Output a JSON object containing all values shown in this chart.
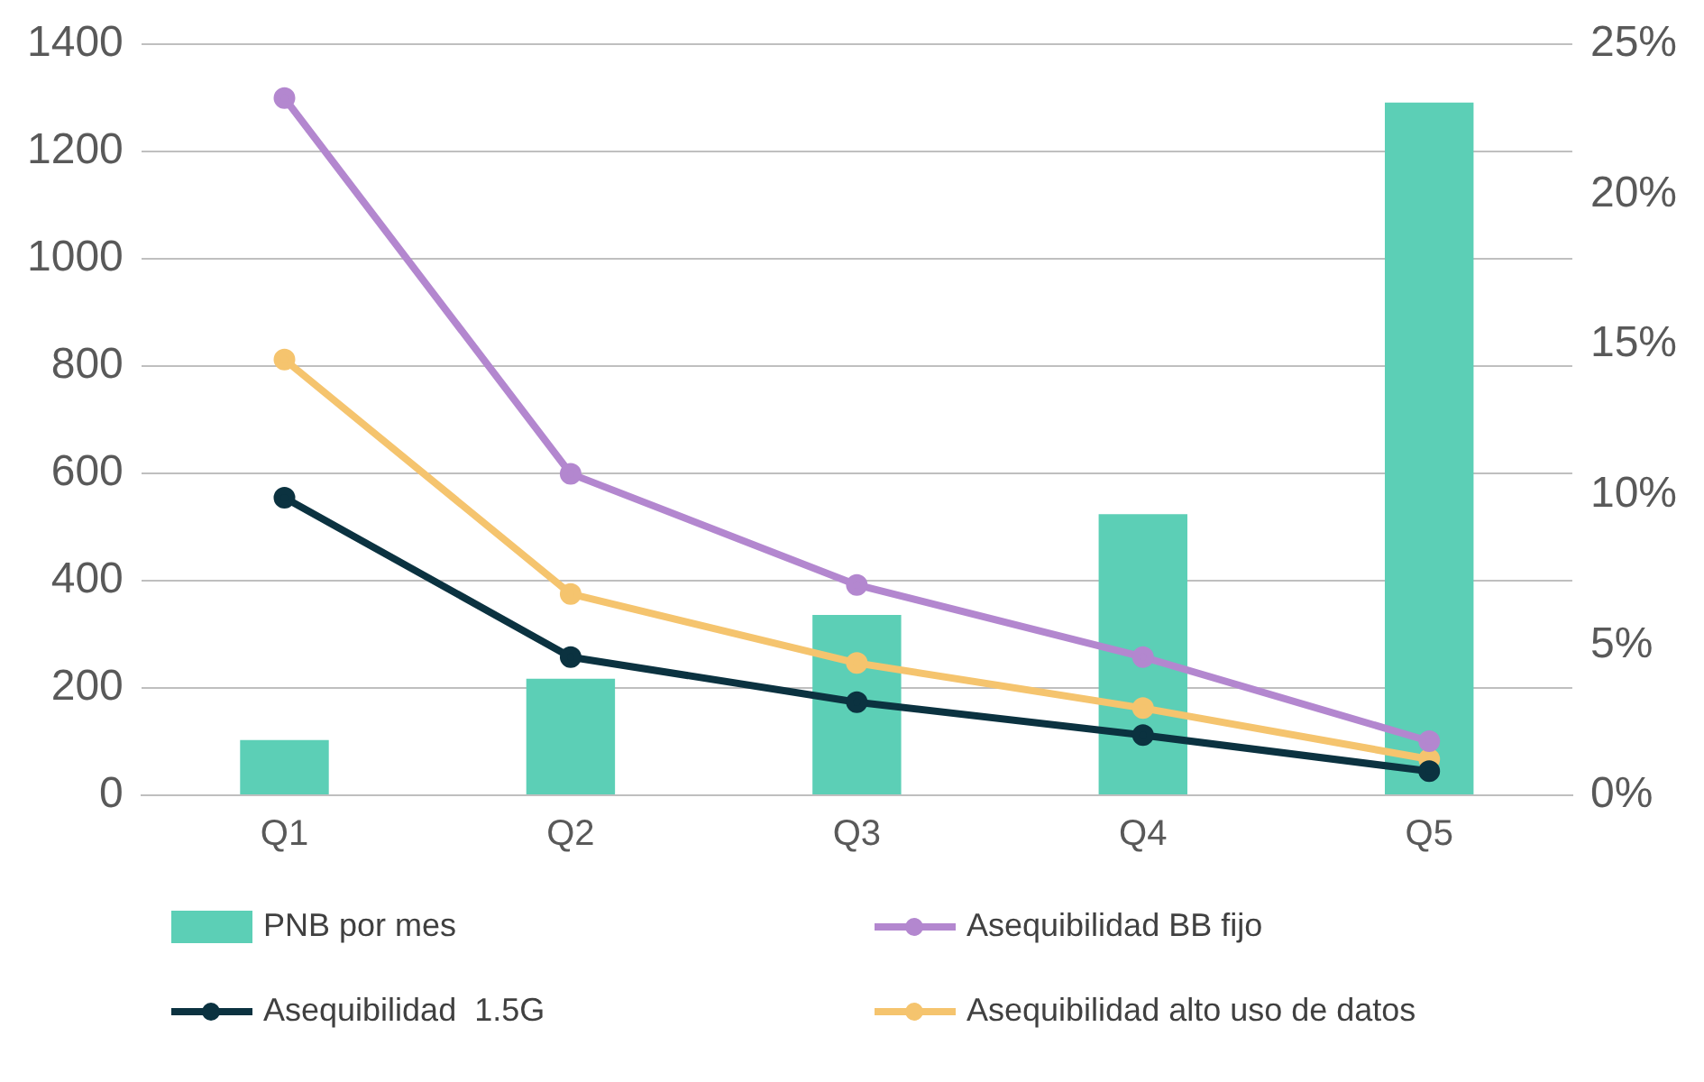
{
  "chart_data": {
    "type": "bar",
    "categories": [
      "Q1",
      "Q2",
      "Q3",
      "Q4",
      "Q5"
    ],
    "series": [
      {
        "name": "PNB por mes",
        "color": "#5ccfb6",
        "values": [
          103,
          217,
          336,
          524,
          1291
        ]
      },
      {
        "name": "Asequibilidad BB fijo",
        "type": "line",
        "axis": "y2",
        "color": "#b387cf",
        "values": [
          23.2,
          10.7,
          7.0,
          4.6,
          1.8
        ]
      },
      {
        "name": "Asequibilidad  1.5G",
        "type": "line",
        "axis": "y2",
        "color": "#0b3240",
        "values": [
          9.9,
          4.6,
          3.1,
          2.0,
          0.8
        ]
      },
      {
        "name": "Asequibilidad alto uso de datos",
        "type": "line",
        "axis": "y2",
        "color": "#f5c46e",
        "values": [
          14.5,
          6.7,
          4.4,
          2.9,
          1.2
        ]
      }
    ],
    "ylim": [
      0,
      1400
    ],
    "yticks": [
      0,
      200,
      400,
      600,
      800,
      1000,
      1200,
      1400
    ],
    "y2lim": [
      0,
      25
    ],
    "y2ticks": [
      {
        "value": 0,
        "label": "0%"
      },
      {
        "value": 5,
        "label": "5%"
      },
      {
        "value": 10,
        "label": "10%"
      },
      {
        "value": 15,
        "label": "15%"
      },
      {
        "value": 20,
        "label": "20%"
      },
      {
        "value": 25,
        "label": "25%"
      }
    ],
    "grid": "y",
    "legend": "bottom",
    "marker": "circle",
    "line_style": "solid"
  }
}
